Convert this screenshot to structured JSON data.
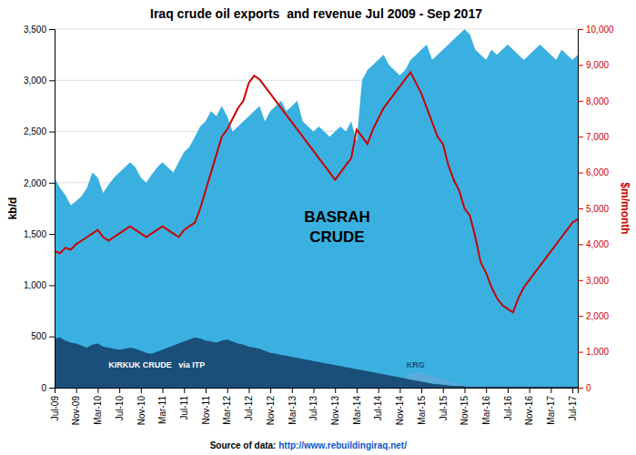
{
  "chart_data": {
    "type": "area",
    "title": "Iraq crude oil exports  and revenue Jul 2009 - Sep 2017",
    "ylabel": "kb/d",
    "y2label": "$m/month",
    "categories": [
      "Jul-09",
      null,
      null,
      null,
      "Nov-09",
      null,
      null,
      null,
      "Mar-10",
      null,
      null,
      null,
      "Jul-10",
      null,
      null,
      null,
      "Nov-10",
      null,
      null,
      null,
      "Mar-11",
      null,
      null,
      null,
      "Jul-11",
      null,
      null,
      null,
      "Nov-11",
      null,
      null,
      null,
      "Mar-12",
      null,
      null,
      null,
      "Jul-12",
      null,
      null,
      null,
      "Nov-12",
      null,
      null,
      null,
      "Mar-13",
      null,
      null,
      null,
      "Jul-13",
      null,
      null,
      null,
      "Nov-13",
      null,
      null,
      null,
      "Mar-14",
      null,
      null,
      null,
      "Jul-14",
      null,
      null,
      null,
      "Nov-14",
      null,
      null,
      null,
      "Mar-15",
      null,
      null,
      null,
      "Jul-15",
      null,
      null,
      null,
      "Nov-15",
      null,
      null,
      null,
      "Mar-16",
      null,
      null,
      null,
      "Jul-16",
      null,
      null,
      null,
      "Nov-16",
      null,
      null,
      null,
      "Mar-17",
      null,
      null,
      null,
      "Jul-17",
      null
    ],
    "ylim": [
      0,
      3500
    ],
    "yticks": [
      0,
      500,
      {
        "value": 1000,
        "label": "1,000"
      },
      {
        "value": 1500,
        "label": "1,500"
      },
      {
        "value": 2000,
        "label": "2,000"
      },
      {
        "value": 2500,
        "label": "2,500"
      },
      {
        "value": 3000,
        "label": "3,000"
      },
      {
        "value": 3500,
        "label": "3,500"
      }
    ],
    "y2lim": [
      0,
      10000
    ],
    "y2ticks": [
      0,
      {
        "value": 1000,
        "label": "1,000"
      },
      {
        "value": 2000,
        "label": "2,000"
      },
      {
        "value": 3000,
        "label": "3,000"
      },
      {
        "value": 4000,
        "label": "4,000"
      },
      {
        "value": 5000,
        "label": "5,000"
      },
      {
        "value": 6000,
        "label": "6,000"
      },
      {
        "value": 7000,
        "label": "7,000"
      },
      {
        "value": 8000,
        "label": "8,000"
      },
      {
        "value": 9000,
        "label": "9,000"
      },
      {
        "value": 10000,
        "label": "10,000"
      }
    ],
    "grid": true,
    "series": [
      {
        "type": "area",
        "color": "#3ab0e0",
        "values": [
          2050,
          1950,
          1880,
          1780,
          1820,
          1870,
          1950,
          2100,
          2050,
          1900,
          1980,
          2050,
          2100,
          2150,
          2200,
          2150,
          2050,
          2000,
          2080,
          2150,
          2200,
          2150,
          2100,
          2200,
          2300,
          2350,
          2450,
          2550,
          2600,
          2700,
          2650,
          2750,
          2650,
          2500,
          2550,
          2600,
          2650,
          2700,
          2750,
          2600,
          2700,
          2750,
          2800,
          2700,
          2750,
          2800,
          2600,
          2550,
          2500,
          2550,
          2500,
          2450,
          2500,
          2550,
          2500,
          2600,
          2400,
          3000,
          3100,
          3150,
          3200,
          3250,
          3150,
          3100,
          3050,
          3100,
          3200,
          3250,
          3300,
          3350,
          3200,
          3250,
          3300,
          3350,
          3400,
          3450,
          3500,
          3450,
          3300,
          3250,
          3200,
          3300,
          3250,
          3300,
          3350,
          3300,
          3250,
          3200,
          3250,
          3300,
          3350,
          3300,
          3250,
          3200,
          3300,
          3250,
          3200,
          3250
        ]
      },
      {
        "type": "area",
        "color": "#1a4f7a",
        "values": [
          480,
          490,
          460,
          440,
          430,
          410,
          390,
          420,
          430,
          400,
          390,
          380,
          370,
          380,
          390,
          380,
          360,
          340,
          330,
          350,
          370,
          390,
          410,
          430,
          450,
          470,
          490,
          480,
          460,
          450,
          440,
          460,
          470,
          450,
          430,
          420,
          400,
          390,
          380,
          360,
          340,
          330,
          320,
          310,
          300,
          290,
          280,
          270,
          260,
          250,
          240,
          230,
          220,
          210,
          200,
          190,
          180,
          170,
          160,
          150,
          140,
          130,
          120,
          110,
          100,
          90,
          80,
          70,
          60,
          50,
          40,
          35,
          30,
          25,
          20,
          20,
          15,
          10,
          10,
          10,
          10,
          10,
          10,
          10,
          10,
          10,
          10,
          10,
          10,
          10,
          10,
          10,
          10,
          10,
          10,
          10,
          10,
          10
        ]
      },
      {
        "type": "area",
        "stacked": true,
        "color": "#5aabdb",
        "values": [
          0,
          0,
          0,
          0,
          0,
          0,
          0,
          0,
          0,
          0,
          0,
          0,
          0,
          0,
          0,
          0,
          0,
          0,
          0,
          0,
          0,
          0,
          0,
          0,
          0,
          0,
          0,
          0,
          0,
          0,
          0,
          0,
          0,
          0,
          0,
          0,
          0,
          0,
          0,
          0,
          0,
          0,
          0,
          0,
          0,
          0,
          0,
          0,
          0,
          0,
          0,
          0,
          0,
          0,
          0,
          0,
          0,
          0,
          0,
          0,
          0,
          0,
          0,
          0,
          0,
          0,
          60,
          80,
          90,
          80,
          70,
          60,
          50,
          40,
          30,
          20,
          10,
          10,
          5,
          5,
          5,
          5,
          5,
          5,
          5,
          5,
          5,
          5,
          5,
          5,
          5,
          5,
          5,
          5,
          5,
          5,
          5,
          5
        ]
      },
      {
        "type": "line",
        "axis": "y2",
        "color": "#cc0000",
        "values": [
          3800,
          3750,
          3900,
          3850,
          4000,
          4100,
          4200,
          4300,
          4400,
          4200,
          4100,
          4200,
          4300,
          4400,
          4500,
          4400,
          4300,
          4200,
          4300,
          4400,
          4500,
          4400,
          4300,
          4200,
          4400,
          4500,
          4600,
          5000,
          5500,
          6000,
          6500,
          7000,
          7200,
          7500,
          7800,
          8000,
          8500,
          8700,
          8600,
          8400,
          8200,
          8000,
          7800,
          7600,
          7400,
          7200,
          7000,
          6800,
          6600,
          6400,
          6200,
          6000,
          5800,
          6000,
          6200,
          6400,
          7200,
          7000,
          6800,
          7200,
          7500,
          7800,
          8000,
          8200,
          8400,
          8600,
          8800,
          8500,
          8200,
          7800,
          7400,
          7000,
          6800,
          6200,
          5800,
          5500,
          5000,
          4800,
          4200,
          3500,
          3200,
          2800,
          2500,
          2300,
          2200,
          2100,
          2500,
          2800,
          3000,
          3200,
          3400,
          3600,
          3800,
          4000,
          4200,
          4400,
          4600,
          4700
        ]
      }
    ],
    "annotations": [
      {
        "text": "BASRAH\nCRUDE",
        "color": "black"
      },
      {
        "text": "KIRKUK CRUDE   via ITP",
        "color": "white"
      },
      {
        "text": "KRG",
        "color": "#1a4f7a"
      },
      {
        "text": "Source of data: ",
        "color": "black"
      },
      {
        "text": "http://www.rebuildingiraq.net/",
        "color": "#1155cc"
      }
    ]
  }
}
